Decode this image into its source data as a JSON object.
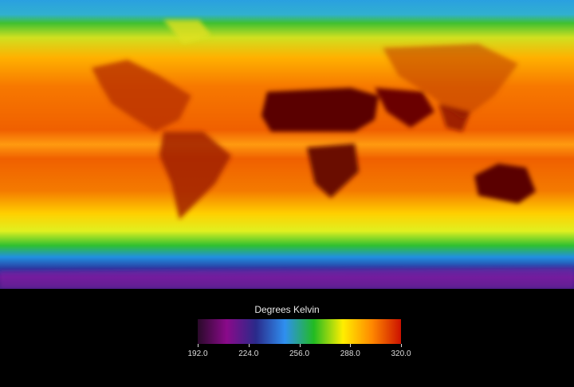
{
  "legend": {
    "title": "Degrees Kelvin",
    "unit": "K",
    "min": 192.0,
    "max": 320.0,
    "ticks": [
      "192.0",
      "224.0",
      "256.0",
      "288.0",
      "320.0"
    ],
    "colormap": [
      "#2a0a2a",
      "#8a0a8a",
      "#2a2a8a",
      "#2f8ff0",
      "#22bb22",
      "#ffee00",
      "#ff8800",
      "#cc1100"
    ]
  },
  "map": {
    "type": "global surface temperature, equirectangular projection",
    "hot_color": "#5a0000",
    "warm_color": "#f06a00",
    "cold_color": "#6a1a9a"
  }
}
